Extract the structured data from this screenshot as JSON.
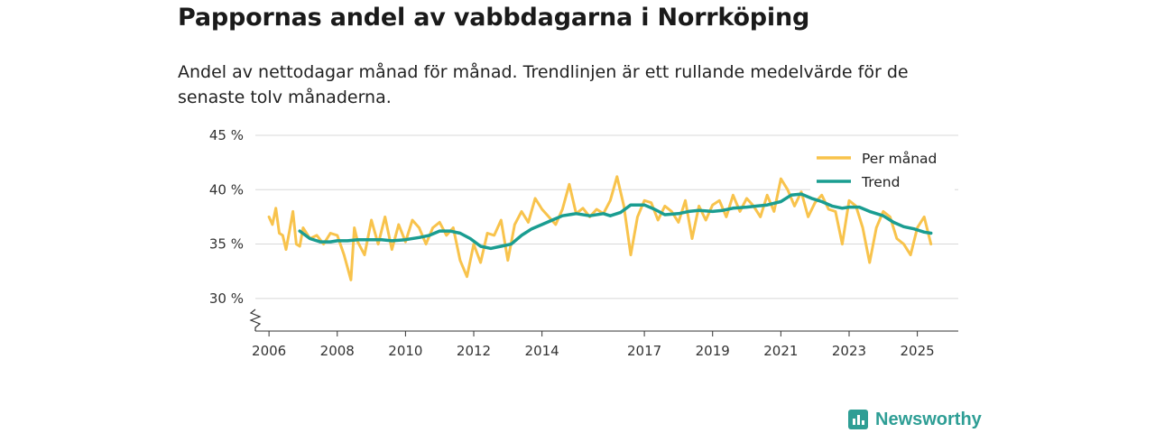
{
  "header": {
    "title": "Pappornas andel av vabbdagarna i Norrköping",
    "subtitle": "Andel av nettodagar månad för månad. Trendlinjen är ett rullande medelvärde för de senaste tolv månaderna."
  },
  "brand": {
    "name": "Newsworthy"
  },
  "colors": {
    "monthly": "#f8c34c",
    "trend": "#1a9d91",
    "grid": "#d8d8d8",
    "axis": "#333333",
    "brand": "#2e9e95"
  },
  "chart_data": {
    "type": "line",
    "title": "Pappornas andel av vabbdagarna i Norrköping",
    "xlabel": "",
    "ylabel": "",
    "ylim": [
      27,
      45
    ],
    "xlim": [
      2005.6,
      2026.2
    ],
    "yticks": [
      30,
      35,
      40,
      45
    ],
    "ytick_labels": [
      "30 %",
      "35 %",
      "40 %",
      "45 %"
    ],
    "xticks": [
      2006,
      2008,
      2010,
      2012,
      2014,
      2017,
      2019,
      2021,
      2023,
      2025
    ],
    "xtick_labels": [
      "2006",
      "2008",
      "2010",
      "2012",
      "2014",
      "2017",
      "2019",
      "2021",
      "2023",
      "2025"
    ],
    "grid": true,
    "legend_position": "top-right",
    "series": [
      {
        "name": "Per månad",
        "x": [
          2006.0,
          2006.1,
          2006.2,
          2006.3,
          2006.4,
          2006.5,
          2006.6,
          2006.7,
          2006.8,
          2006.9,
          2007.0,
          2007.2,
          2007.4,
          2007.6,
          2007.8,
          2008.0,
          2008.2,
          2008.4,
          2008.5,
          2008.6,
          2008.8,
          2009.0,
          2009.2,
          2009.4,
          2009.6,
          2009.8,
          2010.0,
          2010.2,
          2010.4,
          2010.6,
          2010.8,
          2011.0,
          2011.2,
          2011.4,
          2011.6,
          2011.8,
          2012.0,
          2012.2,
          2012.4,
          2012.6,
          2012.8,
          2013.0,
          2013.2,
          2013.4,
          2013.6,
          2013.8,
          2014.0,
          2014.2,
          2014.4,
          2014.6,
          2014.8,
          2015.0,
          2015.2,
          2015.4,
          2015.6,
          2015.8,
          2016.0,
          2016.2,
          2016.4,
          2016.6,
          2016.8,
          2017.0,
          2017.2,
          2017.4,
          2017.6,
          2017.8,
          2018.0,
          2018.2,
          2018.4,
          2018.6,
          2018.8,
          2019.0,
          2019.2,
          2019.4,
          2019.6,
          2019.8,
          2020.0,
          2020.2,
          2020.4,
          2020.6,
          2020.8,
          2021.0,
          2021.2,
          2021.4,
          2021.6,
          2021.8,
          2022.0,
          2022.2,
          2022.4,
          2022.6,
          2022.8,
          2023.0,
          2023.2,
          2023.4,
          2023.6,
          2023.8,
          2024.0,
          2024.2,
          2024.4,
          2024.6,
          2024.8,
          2025.0,
          2025.2,
          2025.4
        ],
        "values": [
          37.5,
          36.8,
          38.3,
          36.0,
          35.8,
          34.5,
          36.2,
          38.0,
          35.0,
          34.8,
          36.5,
          35.5,
          35.8,
          35.0,
          36.0,
          35.8,
          34.0,
          31.7,
          36.5,
          35.2,
          34.0,
          37.2,
          35.0,
          37.5,
          34.5,
          36.8,
          35.2,
          37.2,
          36.5,
          35.0,
          36.5,
          37.0,
          35.8,
          36.5,
          33.5,
          32.0,
          35.0,
          33.3,
          36.0,
          35.8,
          37.2,
          33.5,
          36.8,
          38.0,
          37.0,
          39.2,
          38.2,
          37.5,
          36.8,
          38.2,
          40.5,
          37.8,
          38.3,
          37.5,
          38.2,
          37.8,
          39.0,
          41.2,
          38.5,
          34.0,
          37.5,
          39.0,
          38.8,
          37.2,
          38.5,
          38.0,
          37.0,
          39.0,
          35.5,
          38.5,
          37.2,
          38.6,
          39.0,
          37.5,
          39.5,
          38.0,
          39.2,
          38.5,
          37.5,
          39.5,
          38.0,
          41.0,
          40.0,
          38.5,
          39.8,
          37.5,
          38.8,
          39.5,
          38.2,
          38.0,
          35.0,
          39.0,
          38.5,
          36.5,
          33.3,
          36.5,
          38.0,
          37.5,
          35.5,
          35.0,
          34.0,
          36.5,
          37.5,
          35.0
        ]
      },
      {
        "name": "Trend",
        "x": [
          2006.9,
          2007.2,
          2007.5,
          2007.8,
          2008.0,
          2008.3,
          2008.6,
          2009.0,
          2009.3,
          2009.6,
          2010.0,
          2010.4,
          2010.7,
          2011.0,
          2011.3,
          2011.6,
          2011.9,
          2012.2,
          2012.5,
          2012.8,
          2013.1,
          2013.4,
          2013.7,
          2014.0,
          2014.3,
          2014.6,
          2015.0,
          2015.4,
          2015.8,
          2016.0,
          2016.3,
          2016.6,
          2017.0,
          2017.3,
          2017.6,
          2018.0,
          2018.3,
          2018.6,
          2019.0,
          2019.3,
          2019.6,
          2020.0,
          2020.3,
          2020.6,
          2021.0,
          2021.3,
          2021.6,
          2021.9,
          2022.2,
          2022.5,
          2022.8,
          2023.0,
          2023.3,
          2023.6,
          2024.0,
          2024.3,
          2024.6,
          2024.9,
          2025.2,
          2025.4
        ],
        "values": [
          36.2,
          35.5,
          35.2,
          35.2,
          35.3,
          35.3,
          35.4,
          35.4,
          35.4,
          35.3,
          35.4,
          35.6,
          35.8,
          36.2,
          36.2,
          36.0,
          35.5,
          34.8,
          34.6,
          34.8,
          35.0,
          35.8,
          36.4,
          36.8,
          37.2,
          37.6,
          37.8,
          37.6,
          37.8,
          37.6,
          37.9,
          38.6,
          38.6,
          38.2,
          37.7,
          37.8,
          38.0,
          38.1,
          38.0,
          38.1,
          38.3,
          38.4,
          38.5,
          38.6,
          38.9,
          39.5,
          39.6,
          39.2,
          38.9,
          38.5,
          38.3,
          38.4,
          38.4,
          38.0,
          37.6,
          37.0,
          36.6,
          36.4,
          36.1,
          36.0
        ]
      }
    ]
  }
}
